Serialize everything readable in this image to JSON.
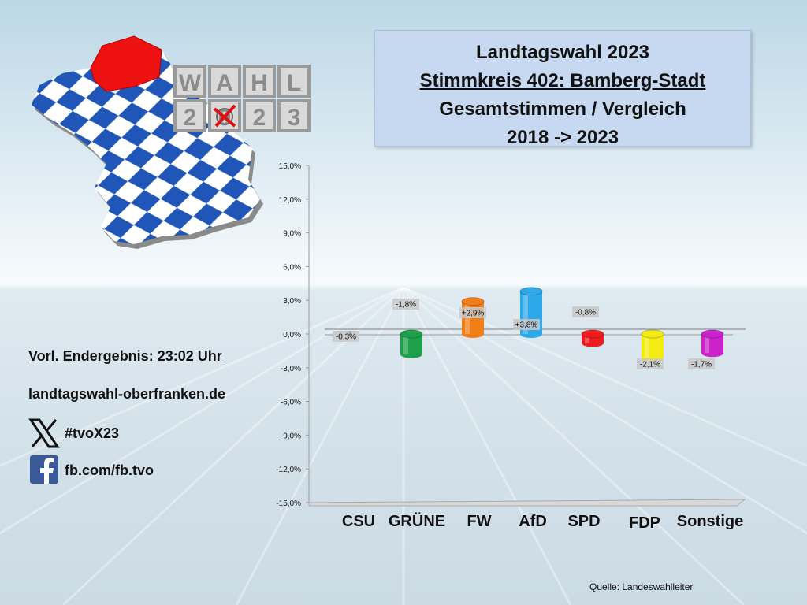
{
  "title": {
    "line1": "Landtagswahl 2023",
    "line2": "Stimmkreis 402: Bamberg-Stadt",
    "line3": "Gesamtstimmen / Vergleich",
    "line4": "2018 -> 2023"
  },
  "logo": {
    "tiles_top": [
      "W",
      "A",
      "H",
      "L"
    ],
    "tiles_bottom": [
      "2",
      "0",
      "2",
      "3"
    ],
    "map_colors": {
      "blue": "#1f56b8",
      "white": "#ffffff",
      "region": "#ee1111"
    }
  },
  "info": {
    "result": "Vorl. Endergebnis: 23:02 Uhr",
    "website": "landtagswahl-oberfranken.de",
    "twitter": "#tvoX23",
    "facebook": "fb.com/fb.tvo"
  },
  "source": "Quelle:  Landeswahlleiter",
  "chart_data": {
    "type": "bar",
    "categories": [
      "CSU",
      "GRÜNE",
      "FW",
      "AfD",
      "SPD",
      "FDP",
      "Sonstige"
    ],
    "values": [
      -0.3,
      -1.8,
      2.9,
      3.8,
      -0.8,
      -2.1,
      -1.7
    ],
    "data_labels": [
      "-0,3%",
      "-1,8%",
      "+2,9%",
      "+3,8%",
      "-0,8%",
      "-2,1%",
      "-1,7%"
    ],
    "colors": [
      "#111111",
      "#1ea04a",
      "#f07f1a",
      "#2ea8e8",
      "#ee1c1c",
      "#f4ec10",
      "#cc22cc"
    ],
    "ylim": [
      -15,
      15
    ],
    "yticks": [
      15,
      12,
      9,
      6,
      3,
      0,
      -3,
      -6,
      -9,
      -12,
      -15
    ],
    "ytick_labels": [
      "15,0%",
      "12,0%",
      "9,0%",
      "6,0%",
      "3,0%",
      "0,0%",
      "-3,0%",
      "-6,0%",
      "-9,0%",
      "-12,0%",
      "-15,0%"
    ],
    "grid": false,
    "legend": "none"
  }
}
